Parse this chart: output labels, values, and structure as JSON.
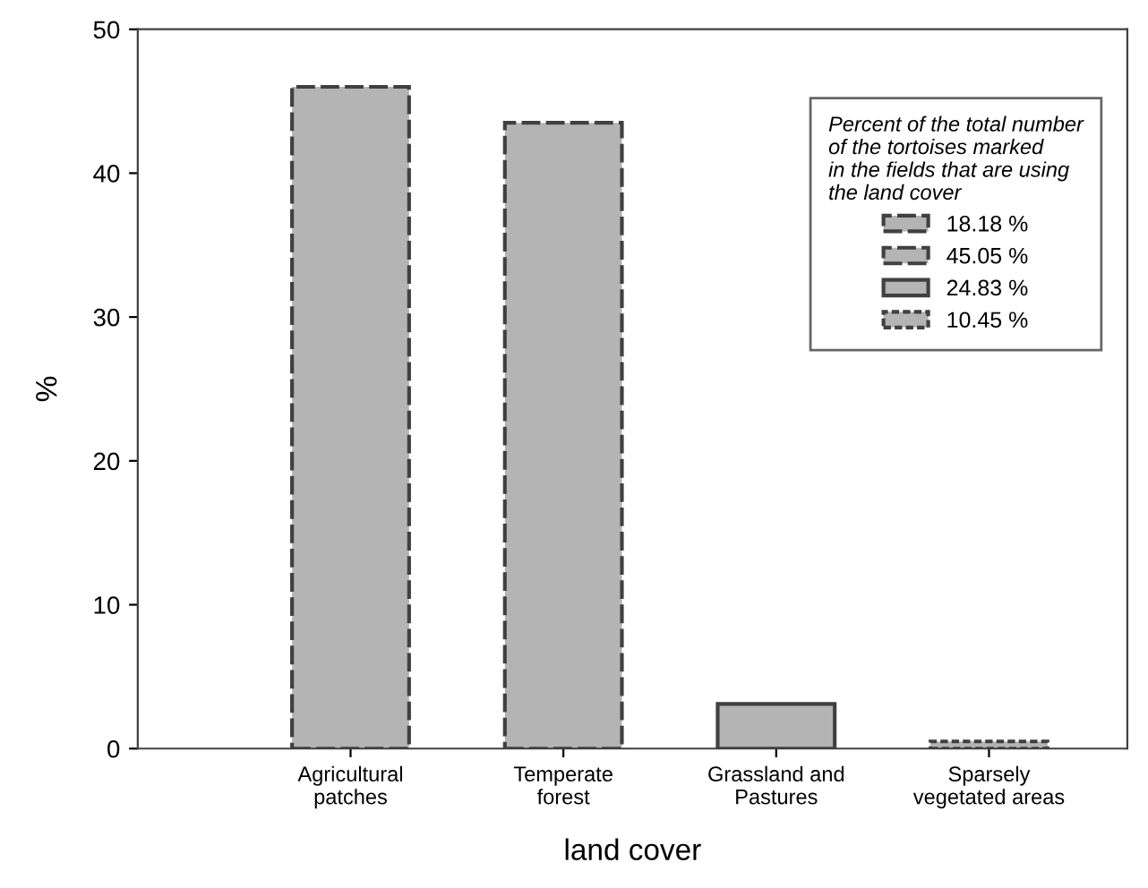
{
  "chart_data": {
    "type": "bar",
    "xlabel": "land cover",
    "ylabel": "%",
    "legend_title": "Percent of the total number\nof the tortoises marked\nin the fields that are using\nthe land cover",
    "categories": [
      "Agricultural\npatches",
      "Temperate\nforest",
      "Grassland and\nPastures",
      "Sparsely\nvegetated areas"
    ],
    "series": [
      {
        "name": "18.18 %",
        "color": "#b4b4b4",
        "line_style": "dashed",
        "values": [
          46.0,
          null,
          null,
          null
        ]
      },
      {
        "name": "45.05 %",
        "color": "#b4b4b4",
        "line_style": "dashed",
        "values": [
          null,
          43.5,
          null,
          null
        ]
      },
      {
        "name": "24.83 %",
        "color": "#b4b4b4",
        "line_style": "solid",
        "values": [
          null,
          null,
          3.1,
          null
        ]
      },
      {
        "name": "10.45 %",
        "color": "#b4b4b4",
        "line_style": "dotted",
        "values": [
          null,
          null,
          null,
          0.5
        ]
      }
    ],
    "ylim": [
      0,
      50
    ],
    "yticks": [
      0,
      10,
      20,
      30,
      40,
      50
    ],
    "legend": "top right",
    "grid": false
  }
}
